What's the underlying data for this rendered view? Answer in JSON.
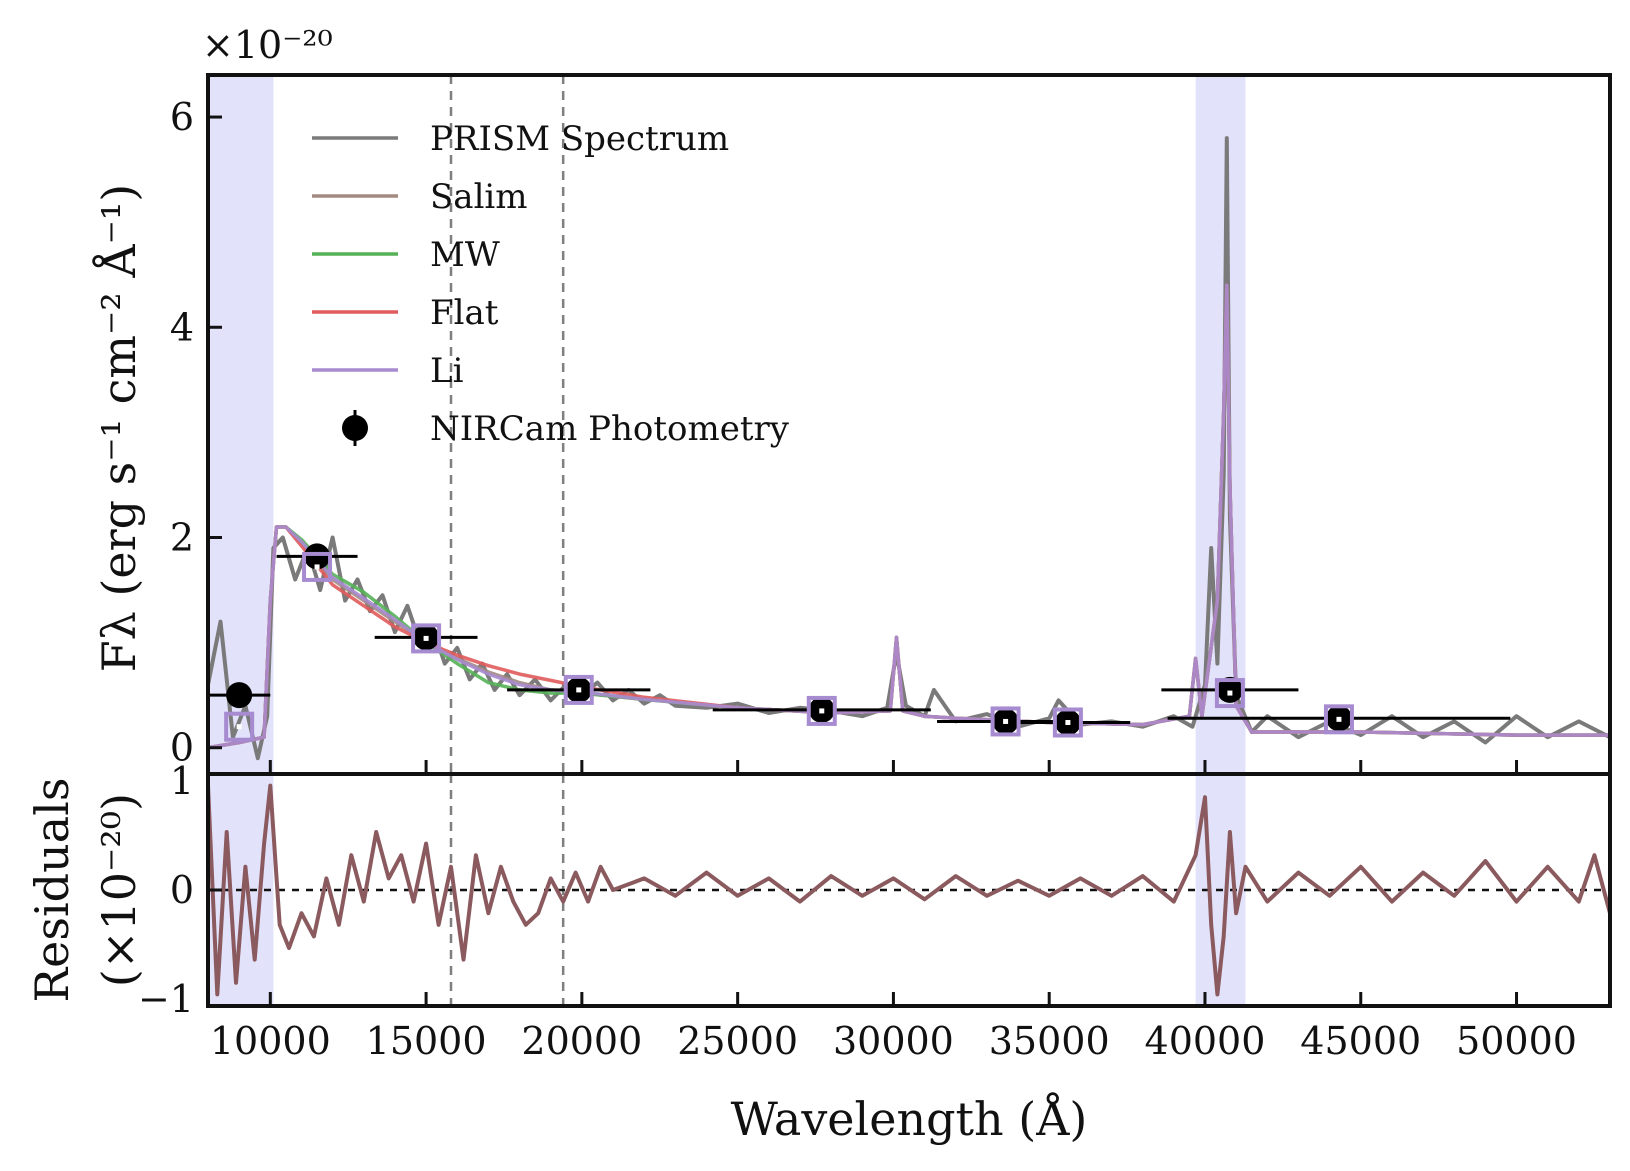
{
  "chart_data": {
    "type": "line",
    "multiplier_label": "×10⁻²⁰",
    "xlabel": "Wavelength (Å)",
    "xlim": [
      8000,
      53000
    ],
    "x_ticks": [
      10000,
      15000,
      20000,
      25000,
      30000,
      35000,
      40000,
      45000,
      50000
    ],
    "top_panel": {
      "ylabel": "Fλ (erg s⁻¹ cm⁻² Å⁻¹)",
      "ylim": [
        -0.25,
        6.4
      ],
      "y_ticks": [
        0,
        2,
        4,
        6
      ],
      "y_tick_labels": [
        "0",
        "2",
        "4",
        "6"
      ]
    },
    "bottom_panel": {
      "ylabel_line1": "Residuals",
      "ylabel_line2": "(×10⁻²⁰)",
      "ylim": [
        -1,
        1
      ],
      "y_ticks": [
        -1,
        0,
        1
      ],
      "y_tick_labels": [
        "−1",
        "0",
        "1"
      ]
    },
    "shaded_regions": [
      [
        8000,
        10100
      ],
      [
        39700,
        41300
      ]
    ],
    "dashed_lines": [
      15800,
      19400
    ],
    "legend": [
      {
        "label": "PRISM Spectrum",
        "color": "#7a7a7a",
        "marker": "line"
      },
      {
        "label": "Salim",
        "color": "#a38a80",
        "marker": "line"
      },
      {
        "label": "MW",
        "color": "#55b155",
        "marker": "line"
      },
      {
        "label": "Flat",
        "color": "#e05b5b",
        "marker": "line"
      },
      {
        "label": "Li",
        "color": "#a78bd0",
        "marker": "line"
      },
      {
        "label": "NIRCam Photometry",
        "color": "#000000",
        "marker": "point"
      }
    ],
    "photometry": [
      {
        "x": 9000,
        "y": 0.5,
        "xerr": 1000
      },
      {
        "x": 11500,
        "y": 1.82,
        "xerr": 1300
      },
      {
        "x": 15000,
        "y": 1.05,
        "xerr": 1650
      },
      {
        "x": 19900,
        "y": 0.55,
        "xerr": 2300
      },
      {
        "x": 27700,
        "y": 0.36,
        "xerr": 3500
      },
      {
        "x": 33600,
        "y": 0.25,
        "xerr": 2200
      },
      {
        "x": 35600,
        "y": 0.24,
        "xerr": 2000
      },
      {
        "x": 40800,
        "y": 0.55,
        "xerr": 2200
      },
      {
        "x": 44300,
        "y": 0.28,
        "xerr": 5500
      }
    ],
    "model_points": [
      {
        "x": 9000,
        "y": 0.2
      },
      {
        "x": 11500,
        "y": 1.72
      },
      {
        "x": 15000,
        "y": 1.04
      },
      {
        "x": 19900,
        "y": 0.55
      },
      {
        "x": 27700,
        "y": 0.35
      },
      {
        "x": 33600,
        "y": 0.25
      },
      {
        "x": 35600,
        "y": 0.24
      },
      {
        "x": 40800,
        "y": 0.52
      },
      {
        "x": 44300,
        "y": 0.27
      }
    ],
    "series": [
      {
        "name": "PRISM Spectrum",
        "color": "#7a7a7a",
        "x": [
          8000,
          8400,
          8800,
          9200,
          9600,
          9900,
          10100,
          10400,
          10800,
          11200,
          11600,
          12000,
          12400,
          12800,
          13200,
          13600,
          14000,
          14400,
          14800,
          15200,
          15600,
          16000,
          16400,
          16800,
          17200,
          17600,
          18000,
          18500,
          19000,
          19500,
          20000,
          20500,
          21000,
          21500,
          22000,
          22500,
          23000,
          24000,
          25000,
          26000,
          27000,
          28000,
          29000,
          29800,
          30100,
          30400,
          31000,
          31300,
          32000,
          33000,
          34000,
          35000,
          35300,
          36000,
          37000,
          38000,
          39000,
          39600,
          40000,
          40200,
          40400,
          40600,
          40700,
          40800,
          41000,
          41500,
          42000,
          43000,
          44000,
          45000,
          46000,
          47000,
          48000,
          49000,
          50000,
          51000,
          52000,
          53000
        ],
        "y": [
          0.6,
          1.2,
          0.1,
          0.4,
          -0.1,
          0.3,
          1.9,
          2.0,
          1.6,
          1.9,
          1.5,
          2.0,
          1.4,
          1.6,
          1.3,
          1.45,
          1.1,
          1.35,
          1.0,
          1.15,
          0.8,
          0.95,
          0.65,
          0.8,
          0.55,
          0.7,
          0.5,
          0.65,
          0.45,
          0.6,
          0.5,
          0.62,
          0.45,
          0.55,
          0.42,
          0.5,
          0.4,
          0.38,
          0.42,
          0.33,
          0.38,
          0.35,
          0.3,
          0.38,
          0.9,
          0.4,
          0.3,
          0.55,
          0.25,
          0.32,
          0.2,
          0.28,
          0.45,
          0.22,
          0.25,
          0.2,
          0.3,
          0.2,
          0.6,
          1.9,
          0.8,
          2.6,
          5.8,
          2.2,
          0.5,
          0.15,
          0.3,
          0.1,
          0.25,
          0.12,
          0.3,
          0.1,
          0.25,
          0.05,
          0.3,
          0.1,
          0.25,
          0.1
        ]
      },
      {
        "name": "Salim",
        "color": "#a38a80",
        "x": [
          8000,
          9000,
          9800,
          10000,
          10200,
          10500,
          11000,
          12000,
          13000,
          14000,
          15000,
          16000,
          17000,
          18000,
          19000,
          20000,
          22000,
          25000,
          28000,
          29900,
          30100,
          30300,
          31000,
          32000,
          35000,
          38000,
          39500,
          39700,
          39900,
          40400,
          40600,
          40700,
          40800,
          41000,
          41500,
          45000,
          50000,
          53000
        ],
        "y": [
          0.0,
          0.05,
          0.1,
          1.4,
          2.1,
          2.1,
          1.95,
          1.6,
          1.4,
          1.2,
          1.0,
          0.85,
          0.72,
          0.62,
          0.55,
          0.52,
          0.46,
          0.38,
          0.33,
          0.35,
          1.05,
          0.35,
          0.3,
          0.28,
          0.24,
          0.22,
          0.3,
          0.85,
          0.3,
          1.4,
          3.2,
          4.4,
          2.5,
          0.4,
          0.15,
          0.15,
          0.12,
          0.12
        ]
      },
      {
        "name": "MW",
        "color": "#55b155",
        "x": [
          8000,
          9000,
          9800,
          10000,
          10200,
          10500,
          11000,
          12000,
          13000,
          14000,
          15000,
          16000,
          17000,
          18000,
          19000,
          20000,
          22000,
          25000,
          28000,
          29900,
          30100,
          30300,
          31000,
          32000,
          35000,
          38000,
          39500,
          39700,
          39900,
          40400,
          40600,
          40700,
          40800,
          41000,
          41500,
          45000,
          50000,
          53000
        ],
        "y": [
          0.0,
          0.05,
          0.1,
          1.4,
          2.1,
          2.1,
          1.98,
          1.65,
          1.48,
          1.25,
          1.0,
          0.8,
          0.62,
          0.55,
          0.52,
          0.52,
          0.46,
          0.38,
          0.33,
          0.35,
          1.05,
          0.35,
          0.3,
          0.28,
          0.24,
          0.22,
          0.3,
          0.85,
          0.3,
          1.4,
          3.2,
          4.4,
          2.5,
          0.4,
          0.15,
          0.15,
          0.12,
          0.12
        ]
      },
      {
        "name": "Flat",
        "color": "#e05b5b",
        "x": [
          8000,
          9000,
          9800,
          10000,
          10200,
          10500,
          11000,
          12000,
          13000,
          14000,
          15000,
          16000,
          17000,
          18000,
          19000,
          20000,
          22000,
          25000,
          28000,
          29900,
          30100,
          30300,
          31000,
          32000,
          35000,
          38000,
          39500,
          39700,
          39900,
          40400,
          40600,
          40700,
          40800,
          41000,
          41500,
          45000,
          50000,
          53000
        ],
        "y": [
          0.0,
          0.05,
          0.1,
          1.4,
          2.1,
          2.1,
          1.92,
          1.55,
          1.35,
          1.15,
          1.0,
          0.88,
          0.78,
          0.7,
          0.64,
          0.58,
          0.48,
          0.38,
          0.33,
          0.35,
          1.05,
          0.35,
          0.3,
          0.28,
          0.24,
          0.22,
          0.3,
          0.85,
          0.3,
          1.4,
          3.2,
          4.4,
          2.5,
          0.4,
          0.15,
          0.15,
          0.12,
          0.12
        ]
      },
      {
        "name": "Li",
        "color": "#a78bd0",
        "x": [
          8000,
          9000,
          9800,
          10000,
          10200,
          10500,
          11000,
          12000,
          13000,
          14000,
          15000,
          16000,
          17000,
          18000,
          19000,
          20000,
          22000,
          25000,
          28000,
          29900,
          30100,
          30300,
          31000,
          32000,
          35000,
          38000,
          39500,
          39700,
          39900,
          40400,
          40600,
          40700,
          40800,
          41000,
          41500,
          45000,
          50000,
          53000
        ],
        "y": [
          0.0,
          0.05,
          0.1,
          1.4,
          2.1,
          2.1,
          1.96,
          1.62,
          1.42,
          1.22,
          1.0,
          0.84,
          0.7,
          0.6,
          0.55,
          0.53,
          0.46,
          0.38,
          0.33,
          0.35,
          1.05,
          0.35,
          0.3,
          0.28,
          0.24,
          0.22,
          0.3,
          0.85,
          0.3,
          1.4,
          3.2,
          4.4,
          2.5,
          0.4,
          0.15,
          0.15,
          0.12,
          0.12
        ]
      }
    ],
    "residuals": {
      "name": "Residuals",
      "color": "#8a5a5e",
      "x": [
        8000,
        8300,
        8600,
        8900,
        9200,
        9500,
        9800,
        10000,
        10300,
        10600,
        11000,
        11400,
        11800,
        12200,
        12600,
        13000,
        13400,
        13800,
        14200,
        14600,
        15000,
        15400,
        15800,
        16200,
        16600,
        17000,
        17400,
        17800,
        18200,
        18600,
        19000,
        19400,
        19800,
        20200,
        20600,
        21000,
        22000,
        23000,
        24000,
        25000,
        26000,
        27000,
        28000,
        29000,
        30000,
        31000,
        32000,
        33000,
        34000,
        35000,
        36000,
        37000,
        38000,
        39000,
        39700,
        40000,
        40200,
        40400,
        40600,
        40800,
        41000,
        41300,
        42000,
        43000,
        44000,
        45000,
        46000,
        47000,
        48000,
        49000,
        50000,
        51000,
        52000,
        52500,
        53000
      ],
      "y": [
        0.9,
        -0.9,
        0.5,
        -0.8,
        0.2,
        -0.6,
        0.4,
        0.9,
        -0.3,
        -0.5,
        -0.2,
        -0.4,
        0.1,
        -0.3,
        0.3,
        -0.1,
        0.5,
        0.1,
        0.3,
        -0.1,
        0.4,
        -0.3,
        0.2,
        -0.6,
        0.3,
        -0.2,
        0.2,
        -0.1,
        -0.3,
        -0.2,
        0.1,
        -0.1,
        0.15,
        -0.1,
        0.2,
        0.0,
        0.1,
        -0.05,
        0.15,
        -0.05,
        0.1,
        -0.1,
        0.12,
        -0.05,
        0.1,
        -0.08,
        0.12,
        -0.05,
        0.08,
        -0.05,
        0.1,
        -0.05,
        0.12,
        -0.1,
        0.3,
        0.8,
        -0.3,
        -0.9,
        -0.4,
        0.5,
        -0.2,
        0.2,
        -0.1,
        0.15,
        -0.05,
        0.2,
        -0.1,
        0.15,
        -0.05,
        0.25,
        -0.1,
        0.2,
        -0.1,
        0.3,
        -0.2
      ]
    }
  }
}
